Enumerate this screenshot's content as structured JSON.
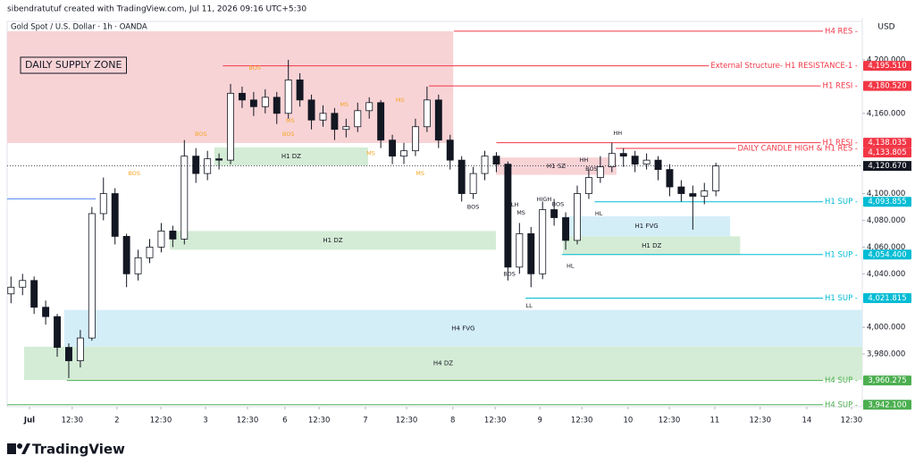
{
  "header": {
    "credit": "sibendratutuf created with TradingView.com, Jul 11, 2026 09:16 UTC+5:30",
    "symbol": "Gold Spot / U.S. Dollar · 1h · OANDA"
  },
  "footer": {
    "brand": "TradingView"
  },
  "chart_data": {
    "type": "candlestick",
    "currency": "USD",
    "title_box": "DAILY SUPPLY ZONE",
    "x": [
      1,
      4,
      7,
      10,
      13,
      16,
      19,
      22,
      25,
      28,
      31,
      34,
      37,
      40,
      43,
      46,
      49,
      52,
      55,
      58,
      61,
      64,
      67,
      70,
      73,
      76,
      79,
      82,
      85,
      88,
      91,
      94,
      97,
      100,
      103,
      106,
      109,
      112,
      115,
      118,
      121,
      124,
      127,
      130,
      133,
      136,
      139,
      142,
      145,
      148,
      151,
      154,
      157,
      160,
      163,
      166,
      169,
      172,
      175,
      178,
      181,
      184
    ],
    "open": [
      4025,
      4030,
      4035,
      4015,
      4008,
      3985,
      3975,
      3992,
      4085,
      4100,
      4068,
      4040,
      4052,
      4060,
      4072,
      4066,
      4128,
      4115,
      4126,
      4125,
      4175,
      4170,
      4165,
      4172,
      4160,
      4185,
      4170,
      4155,
      4160,
      4148,
      4150,
      4162,
      4168,
      4140,
      4128,
      4132,
      4150,
      4170,
      4140,
      4125,
      4100,
      4115,
      4128,
      4122,
      4045,
      4070,
      4040,
      4088,
      4082,
      4065,
      4100,
      4112,
      4120,
      4130,
      4128,
      4122,
      4125,
      4118,
      4105,
      4100,
      4098,
      4102
    ],
    "high": [
      4038,
      4040,
      4038,
      4020,
      4010,
      3988,
      3998,
      4090,
      4112,
      4104,
      4070,
      4058,
      4066,
      4078,
      4076,
      4140,
      4134,
      4132,
      4130,
      4182,
      4180,
      4176,
      4178,
      4176,
      4200,
      4190,
      4174,
      4166,
      4164,
      4156,
      4168,
      4172,
      4170,
      4144,
      4138,
      4156,
      4180,
      4174,
      4144,
      4128,
      4120,
      4132,
      4131,
      4124,
      4078,
      4075,
      4094,
      4096,
      4086,
      4106,
      4118,
      4128,
      4138,
      4134,
      4132,
      4130,
      4128,
      4122,
      4110,
      4106,
      4108,
      4123
    ],
    "low": [
      4018,
      4024,
      4010,
      4002,
      3978,
      3962,
      3970,
      3990,
      4080,
      4062,
      4030,
      4035,
      4048,
      4056,
      4060,
      4062,
      4108,
      4110,
      4118,
      4122,
      4164,
      4158,
      4160,
      4152,
      4156,
      4165,
      4148,
      4150,
      4140,
      4142,
      4146,
      4156,
      4134,
      4122,
      4122,
      4128,
      4146,
      4134,
      4118,
      4094,
      4096,
      4110,
      4116,
      4035,
      4040,
      4030,
      4036,
      4076,
      4058,
      4062,
      4096,
      4108,
      4116,
      4120,
      4116,
      4118,
      4110,
      4098,
      4094,
      4073,
      4092,
      4098
    ],
    "close": [
      4030,
      4035,
      4015,
      4008,
      3985,
      3975,
      3992,
      4085,
      4100,
      4068,
      4040,
      4052,
      4060,
      4072,
      4066,
      4128,
      4115,
      4126,
      4125,
      4175,
      4170,
      4165,
      4172,
      4160,
      4185,
      4170,
      4155,
      4160,
      4148,
      4150,
      4162,
      4168,
      4140,
      4128,
      4132,
      4150,
      4170,
      4140,
      4125,
      4100,
      4115,
      4128,
      4122,
      4045,
      4070,
      4040,
      4088,
      4082,
      4065,
      4100,
      4112,
      4120,
      4130,
      4128,
      4122,
      4125,
      4118,
      4105,
      4100,
      4098,
      4102,
      4120.67
    ],
    "last_label": "4,120.670",
    "up_color": "#ffffff",
    "down_color": "#131722",
    "xlim": [
      0,
      222
    ],
    "xticks": [
      {
        "value": 5.8,
        "label": "Jul"
      },
      {
        "value": 16.9,
        "label": "12:30"
      },
      {
        "value": 28.5,
        "label": "2"
      },
      {
        "value": 39.9,
        "label": "12:30"
      },
      {
        "value": 51.5,
        "label": "3"
      },
      {
        "value": 62.4,
        "label": "12:30"
      },
      {
        "value": 72.1,
        "label": "6"
      },
      {
        "value": 81,
        "label": "12:30"
      },
      {
        "value": 93,
        "label": "7"
      },
      {
        "value": 103.7,
        "label": "12:30"
      },
      {
        "value": 115.7,
        "label": "8"
      },
      {
        "value": 126.7,
        "label": "12:30"
      },
      {
        "value": 138.3,
        "label": "9"
      },
      {
        "value": 149.2,
        "label": "12:30"
      },
      {
        "value": 161.2,
        "label": "10"
      },
      {
        "value": 171.9,
        "label": "12:30"
      },
      {
        "value": 183.7,
        "label": "11"
      },
      {
        "value": 195.5,
        "label": "12:30"
      },
      {
        "value": 207.6,
        "label": "14"
      },
      {
        "value": 219.2,
        "label": "12:30"
      }
    ],
    "ylim": [
      3940.6,
      4224.7
    ],
    "yticks": [
      {
        "value": 4200,
        "label": "4,200.000"
      },
      {
        "value": 4160,
        "label": "4,160.000"
      },
      {
        "value": 4100,
        "label": "4,100.000"
      },
      {
        "value": 4080,
        "label": "4,080.000"
      },
      {
        "value": 4060,
        "label": "4,060.000"
      },
      {
        "value": 4040,
        "label": "4,040.000"
      },
      {
        "value": 4000,
        "label": "4,000.000"
      },
      {
        "value": 3980,
        "label": "3,980.000"
      }
    ],
    "zones": [
      {
        "x": [
          0,
          115.8
        ],
        "y": [
          4137.8,
          4221.4
        ],
        "color": "#f8d3d6"
      },
      {
        "label": "H1 DZ",
        "x": [
          53.8,
          93.7
        ],
        "y": [
          4121,
          4134.5
        ],
        "color": "#d4ecd5"
      },
      {
        "label": "H1 DZ",
        "x": [
          42.2,
          126.9
        ],
        "y": [
          4058,
          4072
        ],
        "color": "#d4ecd5"
      },
      {
        "label": "H1 SZ",
        "x": [
          126.9,
          158.2
        ],
        "y": [
          4114,
          4127
        ],
        "color": "#f8d3d6"
      },
      {
        "label": "H1 FVG",
        "x": [
          144.3,
          187.7
        ],
        "y": [
          4068,
          4083
        ],
        "color": "#d4eef8"
      },
      {
        "label": "H1 DZ",
        "x": [
          144.3,
          190.3
        ],
        "y": [
          4054,
          4068
        ],
        "color": "#d4ecd5"
      },
      {
        "label": "H4 FVG",
        "x": [
          14.8,
          222
        ],
        "y": [
          3985.5,
          4013
        ],
        "color": "#d4eef8"
      },
      {
        "label": "H4 DZ",
        "x": [
          4.4,
          222
        ],
        "y": [
          3960.6,
          3985.5
        ],
        "color": "#d4ecd5"
      }
    ],
    "levels": [
      {
        "label": "H4 RES -",
        "value": 4221.4,
        "from": 116,
        "color": "#f23645"
      },
      {
        "label": "External Structure- H1 RESISTANCE-1 -",
        "value": 4195.51,
        "value_label": "4,195.510",
        "from": 56,
        "color": "#f23645"
      },
      {
        "label": "H1 RESI -",
        "value": 4180.52,
        "value_label": "4,180.520",
        "from": 109.5,
        "color": "#f23645"
      },
      {
        "label": "H1 RESI -",
        "value": 4138.035,
        "value_label": "4,138.035",
        "from": 127,
        "color": "#f23645"
      },
      {
        "label": "DAILY CANDLE HIGH & H1 RES -",
        "value": 4133.805,
        "value_label": "4,133.805",
        "from": 158,
        "color": "#f23645"
      },
      {
        "label": "H1 SUP -",
        "value": 4093.855,
        "value_label": "4,093.855",
        "from": 152.5,
        "color": "#00bcd4"
      },
      {
        "label": "H1 SUP -",
        "value": 4054.4,
        "value_label": "4,054.400",
        "from": 144,
        "color": "#00bcd4"
      },
      {
        "label": "H1 SUP -",
        "value": 4021.815,
        "value_label": "4,021.815",
        "from": 134.6,
        "color": "#00bcd4"
      },
      {
        "label": "H4 SUP -",
        "value": 3960.275,
        "value_label": "3,960.275",
        "from": 15.5,
        "color": "#4caf50"
      },
      {
        "label": "H4 SUP -",
        "value": 3942.1,
        "value_label": "3,942.100",
        "from": 0,
        "color": "#4caf50"
      },
      {
        "value": 4096,
        "from": 0,
        "to": 23,
        "color": "#5b8def"
      }
    ],
    "annotations": [
      {
        "text": "BOS",
        "x": 33,
        "y": 4115,
        "color": "#f5a623"
      },
      {
        "text": "BOS",
        "x": 50.3,
        "y": 4144.5,
        "color": "#f5a623"
      },
      {
        "text": "BOS",
        "x": 64.3,
        "y": 4194,
        "color": "#f5a623"
      },
      {
        "text": "MS",
        "x": 73.5,
        "y": 4154.5,
        "color": "#f5a623"
      },
      {
        "text": "BOS",
        "x": 73,
        "y": 4144.5,
        "color": "#f5a623"
      },
      {
        "text": "MS",
        "x": 87.5,
        "y": 4166.6,
        "color": "#f5a623"
      },
      {
        "text": "MS",
        "x": 102,
        "y": 4170,
        "color": "#f5a623"
      },
      {
        "text": "MS",
        "x": 94.4,
        "y": 4130,
        "color": "#f5a623"
      },
      {
        "text": "MS",
        "x": 107.2,
        "y": 4115,
        "color": "#f5a623"
      },
      {
        "text": "BOS",
        "x": 121,
        "y": 4090,
        "color": "#131722"
      },
      {
        "text": "LH",
        "x": 131.8,
        "y": 4091.7,
        "color": "#131722"
      },
      {
        "text": "MS",
        "x": 133.4,
        "y": 4085.7,
        "color": "#131722"
      },
      {
        "text": "HIGH",
        "x": 139.4,
        "y": 4095.6,
        "color": "#131722"
      },
      {
        "text": "BOS",
        "x": 143,
        "y": 4092,
        "color": "#131722"
      },
      {
        "text": "BOS",
        "x": 130.4,
        "y": 4040,
        "color": "#131722"
      },
      {
        "text": "LL",
        "x": 135.5,
        "y": 4016,
        "color": "#131722"
      },
      {
        "text": "HL",
        "x": 146.2,
        "y": 4046,
        "color": "#131722"
      },
      {
        "text": "HL",
        "x": 153.6,
        "y": 4085,
        "color": "#131722"
      },
      {
        "text": "HH",
        "x": 149.7,
        "y": 4125,
        "color": "#131722"
      },
      {
        "text": "BOS",
        "x": 151.7,
        "y": 4118.4,
        "color": "#131722"
      },
      {
        "text": "HH",
        "x": 158.5,
        "y": 4145,
        "color": "#131722"
      }
    ]
  }
}
